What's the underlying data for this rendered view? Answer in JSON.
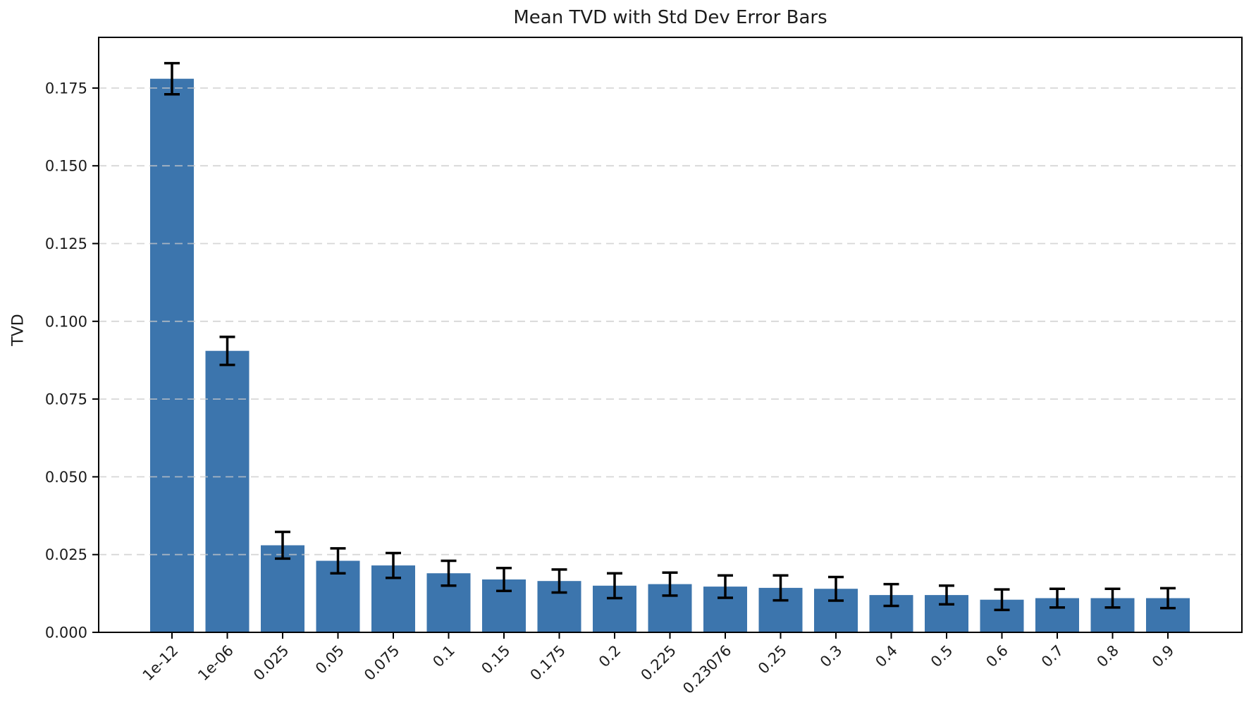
{
  "chart_data": {
    "type": "bar",
    "title": "Mean TVD with Std Dev Error Bars",
    "xlabel": "",
    "ylabel": "TVD",
    "categories": [
      "1e-12",
      "1e-06",
      "0.025",
      "0.05",
      "0.075",
      "0.1",
      "0.15",
      "0.175",
      "0.2",
      "0.225",
      "0.23076",
      "0.25",
      "0.3",
      "0.4",
      "0.5",
      "0.6",
      "0.7",
      "0.8",
      "0.9"
    ],
    "series": [
      {
        "name": "Mean TVD",
        "values": [
          0.178,
          0.0905,
          0.028,
          0.023,
          0.0215,
          0.019,
          0.017,
          0.0165,
          0.015,
          0.0155,
          0.0147,
          0.0143,
          0.014,
          0.012,
          0.012,
          0.0105,
          0.011,
          0.011,
          0.011
        ],
        "errors": [
          0.005,
          0.0045,
          0.0043,
          0.004,
          0.004,
          0.004,
          0.0037,
          0.0037,
          0.004,
          0.0037,
          0.0036,
          0.004,
          0.0038,
          0.0035,
          0.003,
          0.0033,
          0.003,
          0.003,
          0.0032
        ]
      }
    ],
    "error_bars": "std_dev",
    "ylim": [
      0,
      0.1913
    ],
    "yticks": {
      "values": [
        0,
        0.025,
        0.05,
        0.075,
        0.1,
        0.125,
        0.15,
        0.175
      ],
      "labels": [
        "0.000",
        "0.025",
        "0.050",
        "0.075",
        "0.100",
        "0.125",
        "0.150",
        "0.175"
      ]
    },
    "x_tick_rotation": 45,
    "grid": true,
    "grid_axis": "y",
    "grid_style": "dashed",
    "legend": null,
    "colors": {
      "bar": "#3c75ad",
      "error": "#000000",
      "grid": "#c9c9c9",
      "axis": "#000000",
      "text": "#1c1c1c",
      "background": "#ffffff"
    }
  }
}
